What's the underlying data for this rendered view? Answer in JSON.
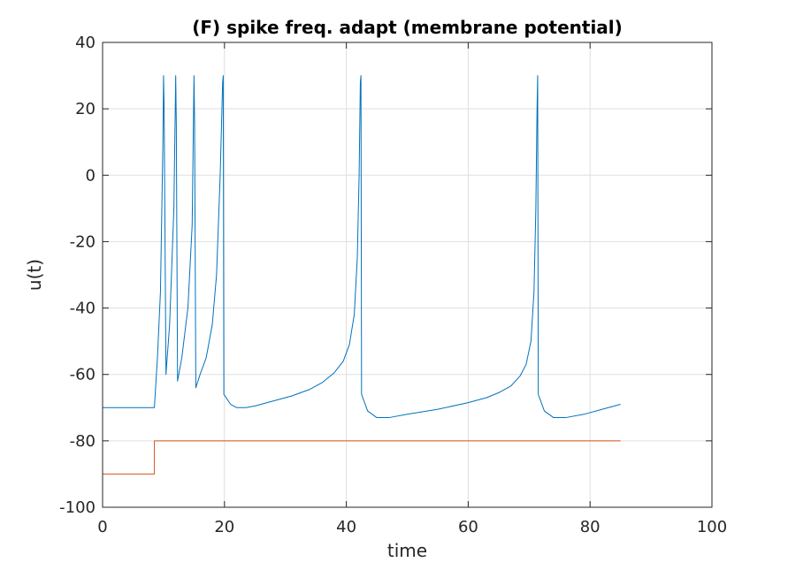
{
  "chart_data": {
    "type": "line",
    "title": "(F) spike freq. adapt (membrane potential)",
    "xlabel": "time",
    "ylabel": "u(t)",
    "xlim": [
      0,
      100
    ],
    "ylim": [
      -100,
      40
    ],
    "xticks": [
      0,
      20,
      40,
      60,
      80,
      100
    ],
    "yticks": [
      -100,
      -80,
      -60,
      -40,
      -20,
      0,
      20,
      40
    ],
    "xtick_labels": [
      "0",
      "20",
      "40",
      "60",
      "80",
      "100"
    ],
    "ytick_labels": [
      "-100",
      "-80",
      "-60",
      "-40",
      "-20",
      "0",
      "20",
      "40"
    ],
    "grid": true,
    "box": true,
    "colors": {
      "axis": "#262626",
      "grid": "#dfdfdf",
      "background": "#ffffff"
    },
    "series": [
      {
        "color": "#0072bd",
        "x": [
          0,
          8.5,
          9.0,
          9.5,
          9.9,
          10.0,
          10.1,
          10.4,
          11.0,
          11.7,
          12.0,
          12.1,
          12.3,
          13.0,
          14.0,
          14.7,
          15.0,
          15.1,
          15.3,
          16.0,
          17.0,
          18.0,
          18.7,
          19.3,
          19.7,
          19.8,
          19.9,
          21.0,
          22.0,
          23.5,
          25.0,
          28.0,
          31.0,
          34.0,
          36.0,
          38.0,
          39.5,
          40.5,
          41.3,
          41.8,
          42.1,
          42.3,
          42.4,
          42.5,
          43.5,
          45.0,
          47.0,
          50.0,
          55.0,
          60.0,
          63.0,
          65.0,
          67.0,
          68.5,
          69.5,
          70.3,
          70.8,
          71.1,
          71.3,
          71.4,
          71.5,
          72.5,
          74.0,
          76.0,
          79.0,
          82.0,
          85.0
        ],
        "y": [
          -70,
          -70,
          -55,
          -35,
          10,
          30,
          20,
          -60,
          -45,
          -10,
          30,
          15,
          -62,
          -55,
          -40,
          -15,
          30,
          15,
          -64,
          -60,
          -55,
          -45,
          -30,
          0,
          28,
          30,
          -66,
          -69,
          -70,
          -70,
          -69.5,
          -68,
          -66.5,
          -64.5,
          -62.5,
          -59.5,
          -56,
          -51,
          -42,
          -25,
          0,
          28,
          30,
          -66,
          -71,
          -73,
          -73,
          -72,
          -70.5,
          -68.5,
          -67,
          -65.5,
          -63.5,
          -60.5,
          -57,
          -50,
          -35,
          -10,
          20,
          30,
          -66,
          -71,
          -73,
          -73,
          -72,
          -70.5,
          -69
        ]
      },
      {
        "color": "#d95319",
        "x": [
          0,
          8.5,
          8.5,
          85
        ],
        "y": [
          -90,
          -90,
          -80,
          -80
        ]
      }
    ]
  }
}
